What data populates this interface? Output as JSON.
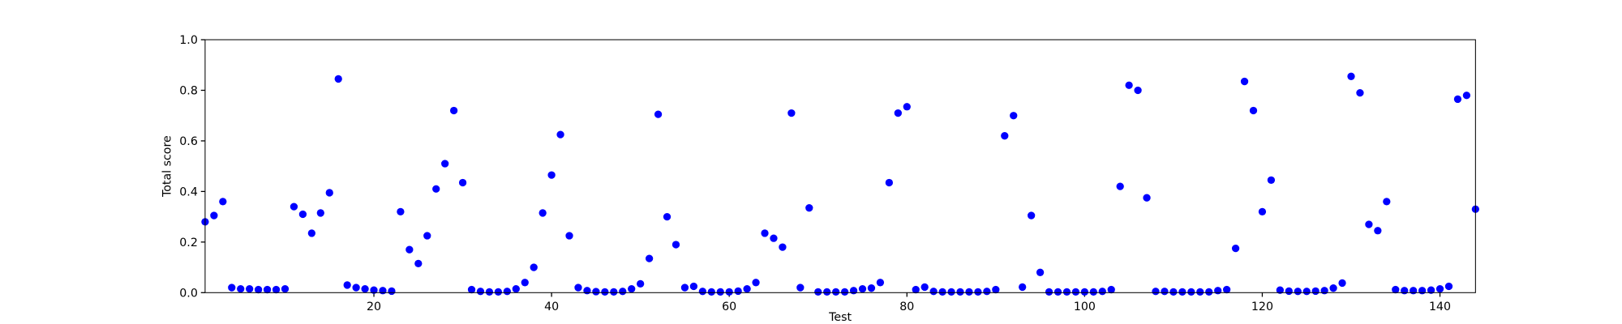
{
  "chart_data": {
    "type": "scatter",
    "x_label": "Test",
    "y_label": "Total score",
    "color": "#0000ff",
    "x": [
      1,
      2,
      3,
      4,
      5,
      6,
      7,
      8,
      9,
      10,
      11,
      12,
      13,
      14,
      15,
      16,
      17,
      18,
      19,
      20,
      21,
      22,
      23,
      24,
      25,
      26,
      27,
      28,
      29,
      30,
      31,
      32,
      33,
      34,
      35,
      36,
      37,
      38,
      39,
      40,
      41,
      42,
      43,
      44,
      45,
      46,
      47,
      48,
      49,
      50,
      51,
      52,
      53,
      54,
      55,
      56,
      57,
      58,
      59,
      60,
      61,
      62,
      63,
      64,
      65,
      66,
      67,
      68,
      69,
      70,
      71,
      72,
      73,
      74,
      75,
      76,
      77,
      78,
      79,
      80,
      81,
      82,
      83,
      84,
      85,
      86,
      87,
      88,
      89,
      90,
      91,
      92,
      93,
      94,
      95,
      96,
      97,
      98,
      99,
      100,
      101,
      102,
      103,
      104,
      105,
      106,
      107,
      108,
      109,
      110,
      111,
      112,
      113,
      114,
      115,
      116,
      117,
      118,
      119,
      120,
      121,
      122,
      123,
      124,
      125,
      126,
      127,
      128,
      129,
      130,
      131,
      132,
      133,
      134,
      135,
      136,
      137,
      138,
      139,
      140,
      141,
      142,
      143,
      144
    ],
    "values": [
      0.28,
      0.305,
      0.36,
      0.02,
      0.015,
      0.015,
      0.012,
      0.012,
      0.012,
      0.015,
      0.34,
      0.31,
      0.235,
      0.315,
      0.395,
      0.845,
      0.03,
      0.02,
      0.015,
      0.01,
      0.008,
      0.006,
      0.32,
      0.17,
      0.115,
      0.225,
      0.41,
      0.51,
      0.72,
      0.435,
      0.012,
      0.005,
      0.003,
      0.003,
      0.005,
      0.015,
      0.04,
      0.1,
      0.315,
      0.465,
      0.625,
      0.225,
      0.02,
      0.008,
      0.004,
      0.003,
      0.003,
      0.005,
      0.015,
      0.035,
      0.135,
      0.705,
      0.3,
      0.19,
      0.02,
      0.025,
      0.005,
      0.003,
      0.003,
      0.003,
      0.006,
      0.015,
      0.04,
      0.235,
      0.215,
      0.18,
      0.71,
      0.02,
      0.335,
      0.003,
      0.003,
      0.003,
      0.003,
      0.008,
      0.015,
      0.018,
      0.04,
      0.435,
      0.71,
      0.735,
      0.012,
      0.022,
      0.005,
      0.003,
      0.003,
      0.003,
      0.003,
      0.003,
      0.005,
      0.012,
      0.62,
      0.7,
      0.022,
      0.305,
      0.08,
      0.003,
      0.003,
      0.003,
      0.003,
      0.003,
      0.003,
      0.005,
      0.012,
      0.42,
      0.82,
      0.8,
      0.375,
      0.005,
      0.005,
      0.003,
      0.003,
      0.003,
      0.003,
      0.003,
      0.008,
      0.012,
      0.175,
      0.835,
      0.72,
      0.32,
      0.445,
      0.01,
      0.006,
      0.005,
      0.005,
      0.006,
      0.008,
      0.018,
      0.038,
      0.855,
      0.79,
      0.27,
      0.245,
      0.36,
      0.012,
      0.008,
      0.008,
      0.008,
      0.01,
      0.015,
      0.025,
      0.765,
      0.78,
      0.33
    ],
    "xlim": [
      1,
      144
    ],
    "ylim": [
      0,
      1
    ],
    "xticks": [
      20,
      40,
      60,
      80,
      100,
      120,
      140
    ],
    "yticks": [
      {
        "value": 0,
        "label": "0.0"
      },
      0.2,
      0.4,
      0.6,
      0.8,
      {
        "value": 1,
        "label": "1.0"
      }
    ]
  }
}
